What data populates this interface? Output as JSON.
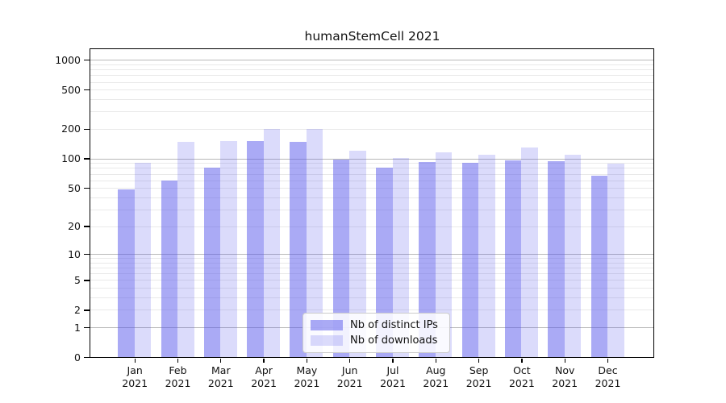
{
  "chart_data": {
    "type": "bar",
    "title": "humanStemCell 2021",
    "categories": [
      "Jan",
      "Feb",
      "Mar",
      "Apr",
      "May",
      "Jun",
      "Jul",
      "Aug",
      "Sep",
      "Oct",
      "Nov",
      "Dec"
    ],
    "category_year": "2021",
    "series": [
      {
        "name": "Nb of distinct IPs",
        "color": "rgba(85,85,235,0.50)",
        "values": [
          48,
          60,
          80,
          151,
          147,
          97,
          81,
          92,
          90,
          95,
          94,
          67
        ]
      },
      {
        "name": "Nb of downloads",
        "color": "rgba(85,85,235,0.21)",
        "values": [
          90,
          148,
          150,
          200,
          200,
          121,
          101,
          115,
          110,
          130,
          109,
          88
        ]
      }
    ],
    "y_axis": {
      "scale": "symlog ln(1+v)",
      "ticks": [
        0,
        1,
        2,
        5,
        10,
        20,
        50,
        100,
        200,
        500,
        1000
      ],
      "major_gridlines": [
        1,
        10,
        100,
        1000
      ],
      "minor_gridlines": [
        2,
        3,
        4,
        5,
        6,
        7,
        8,
        9,
        20,
        30,
        40,
        50,
        60,
        70,
        80,
        90,
        200,
        300,
        400,
        500,
        600,
        700,
        800,
        900
      ]
    },
    "xlabel": "",
    "ylabel": "",
    "grid": true,
    "legend_position": "lower center",
    "colors": {
      "bar_ips_rendered": "#aaaaf5",
      "bar_downloads_rendered": "#dcdcf8",
      "major_grid": "#b9b9b9",
      "minor_grid": "#e9e9e9",
      "spine": "#000000",
      "text": "#111111",
      "background": "#ffffff"
    }
  }
}
